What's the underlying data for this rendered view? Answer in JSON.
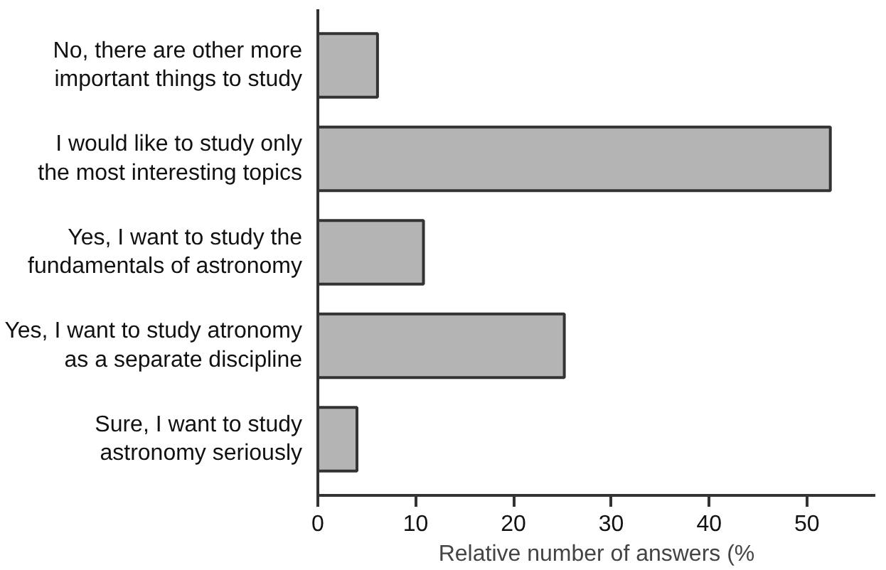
{
  "chart_data": {
    "type": "bar",
    "orientation": "horizontal",
    "xlabel": "Relative number of answers (%",
    "categories": [
      "No, there are other more\nimportant things to study",
      "I would like to study only\nthe most interesting topics",
      "Yes, I want to study the\nfundamentals of astronomy",
      "Yes, I want to study atronomy\nas a separate discipline",
      "Sure, I want to study\nastronomy seriously"
    ],
    "values": [
      6.1,
      52.4,
      10.8,
      25.2,
      4.0
    ],
    "color": "#b4b4b4",
    "xlim": [
      0,
      57
    ],
    "xticks": [
      0,
      10,
      20,
      30,
      40,
      50
    ],
    "grid": false
  }
}
